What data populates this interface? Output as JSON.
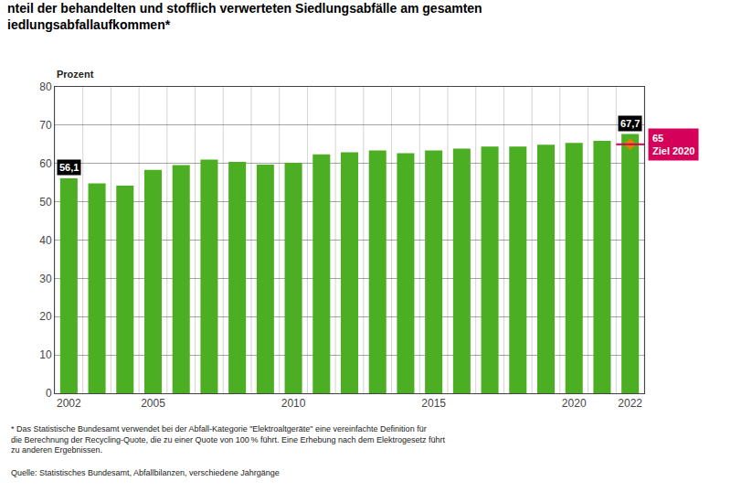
{
  "chart_data": {
    "type": "bar",
    "title": "nteil der behandelten und stofflich verwerteten Siedlungsabfälle am gesamten\niedlungsabfallaufkommen*",
    "ylabel": "Prozent",
    "categories": [
      "2002",
      null,
      null,
      "2005",
      null,
      null,
      null,
      null,
      "2010",
      null,
      null,
      null,
      null,
      "2015",
      null,
      null,
      null,
      null,
      "2020",
      null,
      "2022"
    ],
    "values": [
      56.1,
      54.8,
      54.2,
      58.3,
      59.6,
      61.0,
      60.4,
      59.7,
      60.2,
      62.4,
      62.9,
      63.4,
      62.7,
      63.4,
      63.9,
      64.4,
      64.4,
      64.9,
      65.4,
      65.9,
      67.7
    ],
    "value_labels": [
      "56,1",
      null,
      null,
      null,
      null,
      null,
      null,
      null,
      null,
      null,
      null,
      null,
      null,
      null,
      null,
      null,
      null,
      null,
      null,
      null,
      "67,7"
    ],
    "color": "#4caf23",
    "ylim": [
      0,
      80
    ],
    "yticks": [
      0,
      10,
      20,
      30,
      40,
      50,
      60,
      70,
      80
    ],
    "grid": true,
    "target": {
      "value": 65,
      "label": "Ziel 2020",
      "color": "#d4005a",
      "marker": "diamond",
      "marker_color": "#e08000"
    },
    "footnote": "* Das Statistische Bundesamt verwendet bei der Abfall-Kategorie \"Elektroaltgeräte\" eine vereinfachte Definition für\ndie Berechnung der Recycling-Quote, die zu einer Quote von 100 % führt. Eine Erhebung nach dem Elektrogesetz führt\nzu anderen Ergebnissen.",
    "source": "Quelle: Statistisches Bundesamt, Abfallbilanzen, verschiedene Jahrgänge"
  }
}
